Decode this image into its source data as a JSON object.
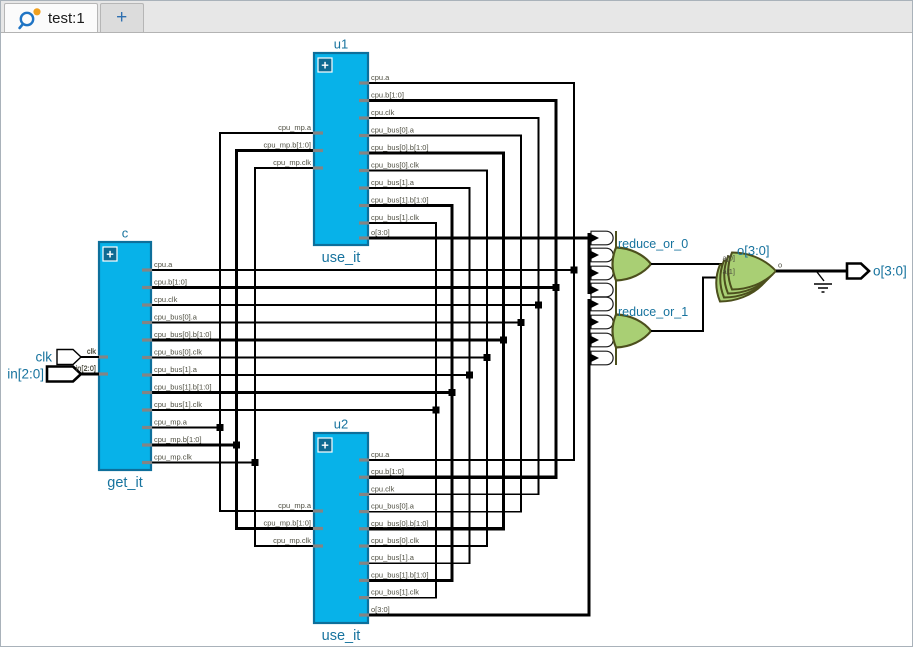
{
  "tabs": [
    {
      "label": "test:1",
      "icon": "magnifier-with-orange-dot",
      "active": true
    },
    {
      "label": "+",
      "active": false
    }
  ],
  "colors": {
    "block_fill": "#07b2e9",
    "block_border": "#0d6f9b",
    "expand_fill": "#0f6a92",
    "accent_text": "#17739e",
    "gate_fill": "#a9cf74",
    "gate_border": "#4c4f1d",
    "wire": "#000000",
    "pin_text": "#4f4f42",
    "nub": "#848484",
    "tab_plus": "#2e6fb0",
    "icon_blue": "#1f74c4",
    "icon_orange": "#f0a01e"
  },
  "blocks": [
    {
      "id": "c",
      "title": "c",
      "module": "get_it",
      "expand": "+",
      "left_pins": [
        "clk",
        "in[2:0]"
      ],
      "right_pins": [
        "cpu.a",
        "cpu.b[1:0]",
        "cpu.clk",
        "cpu_bus[0].a",
        "cpu_bus[0].b[1:0]",
        "cpu_bus[0].clk",
        "cpu_bus[1].a",
        "cpu_bus[1].b[1:0]",
        "cpu_bus[1].clk",
        "cpu_mp.a",
        "cpu_mp.b[1:0]",
        "cpu_mp.clk"
      ]
    },
    {
      "id": "u1",
      "title": "u1",
      "module": "use_it",
      "expand": "+",
      "left_pins": [
        "cpu_mp.a",
        "cpu_mp.b[1:0]",
        "cpu_mp.clk"
      ],
      "right_pins": [
        "cpu.a",
        "cpu.b[1:0]",
        "cpu.clk",
        "cpu_bus[0].a",
        "cpu_bus[0].b[1:0]",
        "cpu_bus[0].clk",
        "cpu_bus[1].a",
        "cpu_bus[1].b[1:0]",
        "cpu_bus[1].clk",
        "o[3:0]"
      ]
    },
    {
      "id": "u2",
      "title": "u2",
      "module": "use_it",
      "expand": "+",
      "left_pins": [
        "cpu_mp.a",
        "cpu_mp.b[1:0]",
        "cpu_mp.clk"
      ],
      "right_pins": [
        "cpu.a",
        "cpu.b[1:0]",
        "cpu.clk",
        "cpu_bus[0].a",
        "cpu_bus[0].b[1:0]",
        "cpu_bus[0].clk",
        "cpu_bus[1].a",
        "cpu_bus[1].b[1:0]",
        "cpu_bus[1].clk",
        "o[3:0]"
      ]
    }
  ],
  "ports": [
    {
      "name": "clk",
      "dir": "input",
      "bus": false
    },
    {
      "name": "in[2:0]",
      "dir": "input",
      "bus": true
    },
    {
      "name": "o[3:0]",
      "dir": "output",
      "bus": true
    }
  ],
  "gates": [
    {
      "id": "reduce_or_0",
      "label": "reduce_or_0",
      "inputs": 4
    },
    {
      "id": "reduce_or_1",
      "label": "reduce_or_1",
      "inputs": 4
    },
    {
      "id": "output_or_array",
      "label": "o[3:0]",
      "input_pins": [
        "a[0]",
        "a[1]"
      ],
      "output_pin": "o",
      "stack": 4
    }
  ]
}
